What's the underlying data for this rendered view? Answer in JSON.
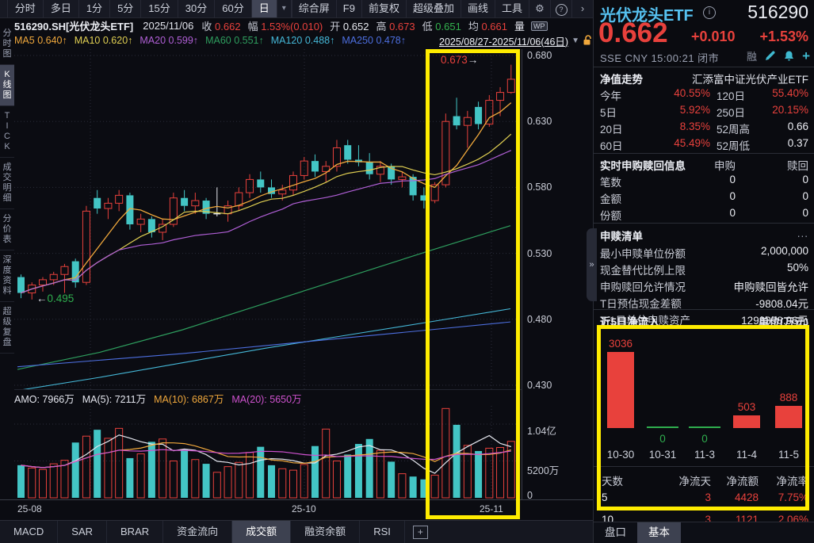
{
  "colors": {
    "red": "#e8413c",
    "cyan": "#43c5c5",
    "green": "#2fae4e",
    "white_candle": "#e8eaf0",
    "ma5": "#f0a83c",
    "ma10": "#e0cf52",
    "ma20": "#b05fd6",
    "ma60": "#2e9e5e",
    "ma120": "#45b8d8",
    "ma250": "#4d6fe0",
    "vol_ma5": "#e4e6ee",
    "vol_ma10": "#f0a83c",
    "vol_ma20": "#cf52cf",
    "highlight": "#ffec00"
  },
  "toolbar": {
    "period_tabs": [
      "分时",
      "多日",
      "1分",
      "5分",
      "15分",
      "30分",
      "60分",
      "日"
    ],
    "selected_period": "日",
    "dropdown_icon": "▾",
    "right_buttons": [
      "综合屏",
      "F9",
      "前复权",
      "超级叠加",
      "画线",
      "工具"
    ],
    "gear_icon": "⚙",
    "help_icon": "?",
    "chevron_right": "›"
  },
  "info_bar": {
    "symbol": "516290.SH[光伏龙头ETF]",
    "date": "2025/11/06",
    "fields": [
      {
        "label": "收",
        "value": "0.662",
        "cls": "c-red"
      },
      {
        "label": "幅",
        "value": "1.53%(0.010)",
        "cls": "c-red"
      },
      {
        "label": "开",
        "value": "0.652",
        "cls": "c-white"
      },
      {
        "label": "高",
        "value": "0.673",
        "cls": "c-red"
      },
      {
        "label": "低",
        "value": "0.651",
        "cls": "c-green"
      },
      {
        "label": "均",
        "value": "0.661",
        "cls": "c-red"
      }
    ],
    "volume_label": "量",
    "wp_badge": "WP"
  },
  "ma_bar": {
    "items": [
      {
        "label": "MA5",
        "value": "0.640↑",
        "color": "#f0a83c"
      },
      {
        "label": "MA10",
        "value": "0.620↑",
        "color": "#e0cf52"
      },
      {
        "label": "MA20",
        "value": "0.599↑",
        "color": "#b05fd6"
      },
      {
        "label": "MA60",
        "value": "0.551↑",
        "color": "#2e9e5e"
      },
      {
        "label": "MA120",
        "value": "0.488↑",
        "color": "#45b8d8"
      },
      {
        "label": "MA250",
        "value": "0.478↑",
        "color": "#4d6fe0"
      }
    ],
    "date_range": "2025/08/27-2025/11/06(46日)",
    "triangle": "▼"
  },
  "sidebar": {
    "items": [
      "分时图",
      "K线图",
      "TICK",
      "成交明细",
      "分价表",
      "深度资料",
      "超级复盘"
    ],
    "selected": "K线图"
  },
  "amo": {
    "amo": "AMO: 7966万",
    "ma5": "MA(5): 7211万",
    "ma10": "MA(10): 6867万",
    "ma20": "MA(20): 5650万"
  },
  "chart_data": [
    {
      "type": "candlestick",
      "title": "516290.SH 光伏龙头ETF 日K",
      "x_range_label": "2025/08/27-2025/11/06(46日)",
      "ylim": [
        0.422,
        0.685
      ],
      "yticks": [
        0.68,
        0.63,
        0.58,
        0.53,
        0.48,
        0.43
      ],
      "ytick_labels": [
        "0.680",
        "0.630",
        "0.580",
        "0.530",
        "0.480",
        "0.430"
      ],
      "x_labels": [
        {
          "label": "25-08",
          "x": 22
        },
        {
          "label": "25-10",
          "x": 368
        },
        {
          "label": "25-11",
          "x": 605
        }
      ],
      "grid_vx": [
        114,
        384,
        620
      ],
      "candles": [
        [
          0.512,
          0.514,
          0.496,
          0.5
        ],
        [
          0.5,
          0.508,
          0.495,
          0.506
        ],
        [
          0.506,
          0.512,
          0.501,
          0.51
        ],
        [
          0.51,
          0.516,
          0.506,
          0.514
        ],
        [
          0.514,
          0.522,
          0.5,
          0.52
        ],
        [
          0.524,
          0.526,
          0.504,
          0.508
        ],
        [
          0.508,
          0.566,
          0.506,
          0.562
        ],
        [
          0.572,
          0.578,
          0.56,
          0.564
        ],
        [
          0.564,
          0.572,
          0.556,
          0.568
        ],
        [
          0.568,
          0.578,
          0.562,
          0.574
        ],
        [
          0.574,
          0.576,
          0.548,
          0.552
        ],
        [
          0.552,
          0.56,
          0.546,
          0.556
        ],
        [
          0.556,
          0.558,
          0.542,
          0.546
        ],
        [
          0.546,
          0.556,
          0.54,
          0.552
        ],
        [
          0.552,
          0.576,
          0.55,
          0.572
        ],
        [
          0.572,
          0.578,
          0.562,
          0.566
        ],
        [
          0.566,
          0.576,
          0.56,
          0.57
        ],
        [
          0.57,
          0.572,
          0.556,
          0.56
        ],
        [
          0.56,
          0.58,
          0.558,
          0.56
        ],
        [
          0.56,
          0.57,
          0.554,
          0.566
        ],
        [
          0.566,
          0.58,
          0.562,
          0.576
        ],
        [
          0.576,
          0.59,
          0.572,
          0.586
        ],
        [
          0.586,
          0.592,
          0.576,
          0.58
        ],
        [
          0.58,
          0.586,
          0.572,
          0.575
        ],
        [
          0.575,
          0.582,
          0.57,
          0.578
        ],
        [
          0.578,
          0.592,
          0.574,
          0.589
        ],
        [
          0.589,
          0.603,
          0.586,
          0.6
        ],
        [
          0.6,
          0.605,
          0.588,
          0.592
        ],
        [
          0.592,
          0.6,
          0.584,
          0.596
        ],
        [
          0.596,
          0.616,
          0.592,
          0.61
        ],
        [
          0.612,
          0.616,
          0.598,
          0.601
        ],
        [
          0.601,
          0.612,
          0.596,
          0.599
        ],
        [
          0.599,
          0.606,
          0.586,
          0.59
        ],
        [
          0.59,
          0.6,
          0.584,
          0.596
        ],
        [
          0.596,
          0.598,
          0.582,
          0.586
        ],
        [
          0.586,
          0.592,
          0.58,
          0.588
        ],
        [
          0.588,
          0.59,
          0.57,
          0.574
        ],
        [
          0.574,
          0.58,
          0.564,
          0.57
        ],
        [
          0.57,
          0.584,
          0.568,
          0.582
        ],
        [
          0.582,
          0.636,
          0.58,
          0.63
        ],
        [
          0.634,
          0.648,
          0.624,
          0.627
        ],
        [
          0.627,
          0.638,
          0.61,
          0.633
        ],
        [
          0.641,
          0.645,
          0.624,
          0.628
        ],
        [
          0.628,
          0.65,
          0.626,
          0.646
        ],
        [
          0.646,
          0.656,
          0.634,
          0.652
        ],
        [
          0.652,
          0.673,
          0.651,
          0.662
        ]
      ],
      "ma60_points": [
        0.442,
        0.455,
        0.472,
        0.492,
        0.512,
        0.532,
        0.551
      ],
      "ma120_points": [
        0.426,
        0.436,
        0.447,
        0.458,
        0.468,
        0.478,
        0.488
      ],
      "ma250_points": [
        0.444,
        0.449,
        0.454,
        0.46,
        0.466,
        0.472,
        0.478
      ],
      "annotations": [
        {
          "text": "0.673",
          "arrow": "→",
          "color": "#e8413c"
        },
        {
          "text": "0.495",
          "arrow": "←",
          "color": "#2fae4e"
        }
      ],
      "highlight_days": "last 8 (2025/10/27-2025/11/06 breakout)"
    },
    {
      "type": "bar",
      "title": "成交额",
      "yticks": [
        "1.04亿",
        "5200万",
        "0"
      ],
      "values_wan": [
        4600,
        4200,
        4000,
        4800,
        5300,
        7800,
        8700,
        9600,
        8400,
        9800,
        5600,
        6200,
        7900,
        8300,
        5200,
        6800,
        5400,
        4800,
        3600,
        4400,
        5000,
        6400,
        7200,
        4600,
        4100,
        3900,
        4700,
        7300,
        9700,
        5200,
        6100,
        7600,
        8300,
        6700,
        5100,
        3400,
        3000,
        2600,
        3200,
        12600,
        10300,
        7400,
        6600,
        7000,
        7100,
        7966
      ]
    },
    {
      "type": "bar",
      "title": "近5日净流入",
      "unit": "单位(万元)",
      "categories": [
        "10-30",
        "10-31",
        "11-3",
        "11-4",
        "11-5"
      ],
      "values": [
        3036,
        0,
        0,
        503,
        888
      ]
    }
  ],
  "bottom_tabs": {
    "items": [
      "MACD",
      "SAR",
      "BRAR",
      "资金流向",
      "成交额",
      "融资余额",
      "RSI"
    ],
    "selected": "成交额",
    "add_icon": "+"
  },
  "quote_panel": {
    "name": "光伏龙头ETF",
    "info_icon": "i",
    "code": "516290",
    "price": "0.662",
    "change": "+0.010",
    "change_pct": "+1.53%",
    "meta": "SSE  CNY  15:00:21   闭市",
    "rong_badge": "融",
    "plus_icon": "+",
    "nav": {
      "title": "净值走势",
      "fund_name": "汇添富中证光伏产业ETF",
      "rows": [
        {
          "l1": "今年",
          "v1": "40.55%",
          "l2": "120日",
          "v2": "55.40%",
          "w2": false
        },
        {
          "l1": "5日",
          "v1": "5.92%",
          "l2": "250日",
          "v2": "20.15%",
          "w2": false
        },
        {
          "l1": "20日",
          "v1": "8.35%",
          "l2": "52周高",
          "v2": "0.66",
          "w2": true
        },
        {
          "l1": "60日",
          "v1": "45.49%",
          "l2": "52周低",
          "v2": "0.37",
          "w2": true
        }
      ]
    },
    "realtime": {
      "title": "实时申购赎回信息",
      "col1": "申购",
      "col2": "赎回",
      "rows": [
        {
          "label": "笔数",
          "v1": "0",
          "v2": "0"
        },
        {
          "label": "金额",
          "v1": "0",
          "v2": "0"
        },
        {
          "label": "份额",
          "v1": "0",
          "v2": "0"
        }
      ]
    },
    "list": {
      "title": "申赎清单",
      "more": "...",
      "rows": [
        {
          "label": "最小申赎单位份额",
          "value": "2,000,000"
        },
        {
          "label": "现金替代比例上限",
          "value": "50%"
        },
        {
          "label": "申购赎回允许情况",
          "value": "申购赎回皆允许"
        },
        {
          "label": "T日预估现金差额",
          "value": "-9808.04元"
        },
        {
          "label": "T-1日单位申赎资产",
          "value": "1298398.96元"
        }
      ]
    },
    "inflow": {
      "title": "近5日净流入",
      "unit": "单位(万元)"
    },
    "flow_table": {
      "headers": [
        "天数",
        "净流天",
        "净流额",
        "净流率"
      ],
      "rows": [
        {
          "c0": "5",
          "c1": "3",
          "c2": "4428",
          "c3": "7.75%"
        },
        {
          "c0": "10",
          "c1": "3",
          "c2": "1121",
          "c3": "2.06%"
        }
      ]
    },
    "tabs": [
      "盘口",
      "基本"
    ],
    "selected_tab": "基本"
  }
}
